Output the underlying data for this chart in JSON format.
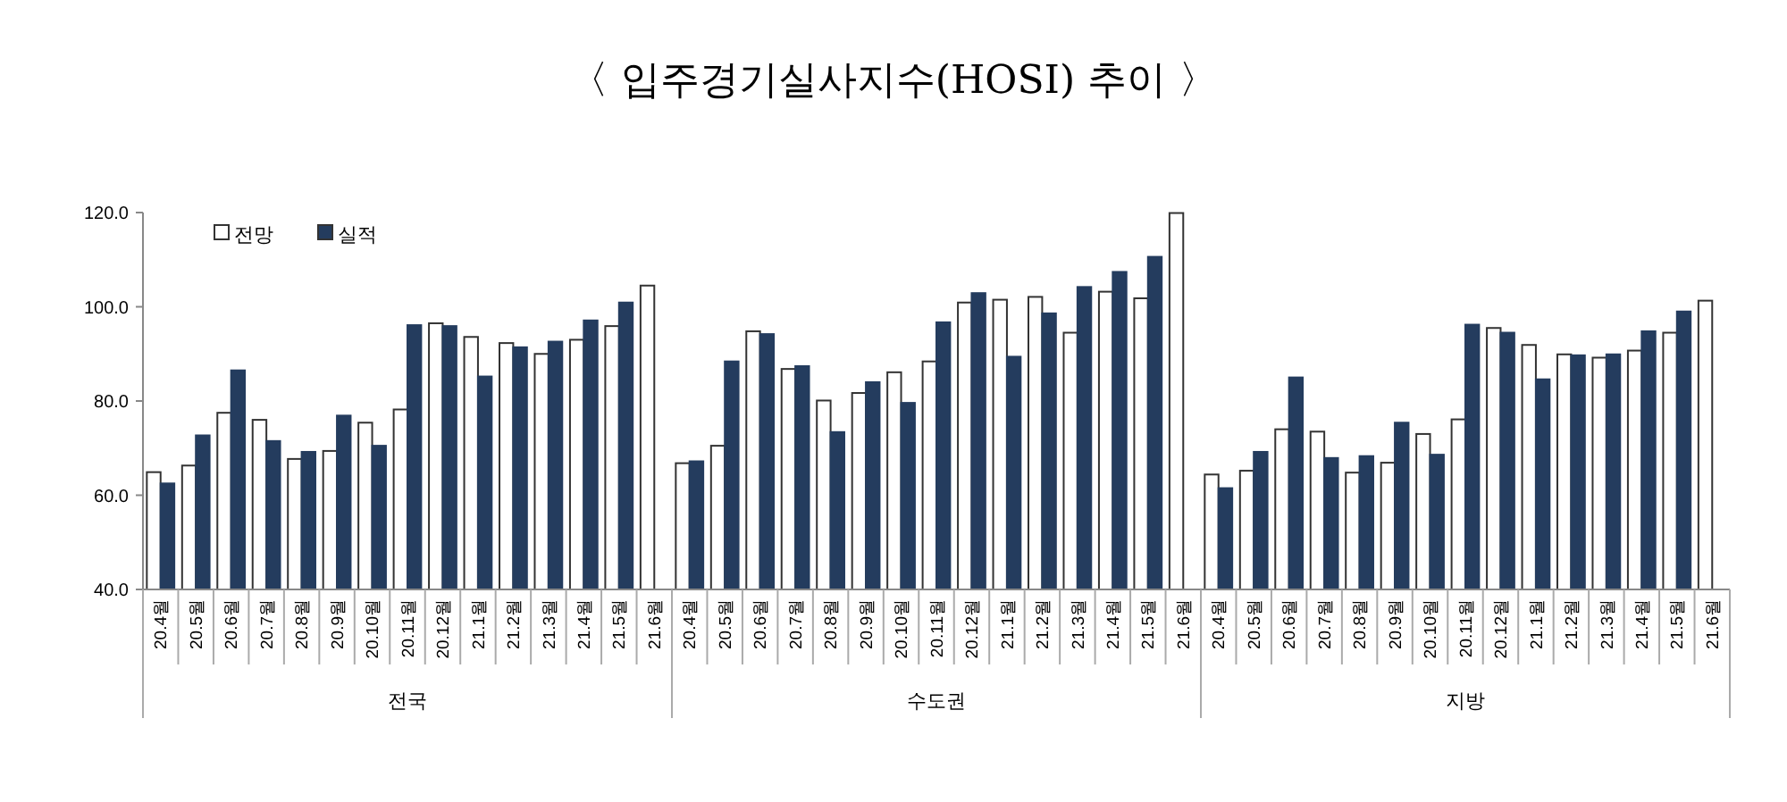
{
  "chart_data": {
    "type": "bar",
    "title": "〈 입주경기실사지수(HOSI) 추이 〉",
    "categories": [
      "20.4월",
      "20.5월",
      "20.6월",
      "20.7월",
      "20.8월",
      "20.9월",
      "20.10월",
      "20.11월",
      "20.12월",
      "21.1월",
      "21.2월",
      "21.3월",
      "21.4월",
      "21.5월",
      "21.6월",
      "20.4월",
      "20.5월",
      "20.6월",
      "20.7월",
      "20.8월",
      "20.9월",
      "20.10월",
      "20.11월",
      "20.12월",
      "21.1월",
      "21.2월",
      "21.3월",
      "21.4월",
      "21.5월",
      "21.6월",
      "20.4월",
      "20.5월",
      "20.6월",
      "20.7월",
      "20.8월",
      "20.9월",
      "20.10월",
      "20.11월",
      "20.12월",
      "21.1월",
      "21.2월",
      "21.3월",
      "21.4월",
      "21.5월",
      "21.6월"
    ],
    "series": [
      {
        "name": "전망",
        "color": "#ffffff",
        "values": [
          64.9,
          66.3,
          77.5,
          76.0,
          67.7,
          69.4,
          75.4,
          78.2,
          96.5,
          93.6,
          92.3,
          90.0,
          93.0,
          95.9,
          104.5,
          66.8,
          70.5,
          94.8,
          86.8,
          80.1,
          81.7,
          86.1,
          88.4,
          100.9,
          101.5,
          102.1,
          94.5,
          103.2,
          101.8,
          119.9,
          64.4,
          65.2,
          74.0,
          73.5,
          64.8,
          66.9,
          73.0,
          76.1,
          95.5,
          91.9,
          89.9,
          89.2,
          90.7,
          94.5,
          101.3
        ]
      },
      {
        "name": "실적",
        "color": "#243c5e",
        "values": [
          62.5,
          72.7,
          86.5,
          71.5,
          69.2,
          76.9,
          70.5,
          96.1,
          95.9,
          85.2,
          91.4,
          92.6,
          97.1,
          100.9,
          null,
          67.2,
          88.4,
          94.2,
          87.4,
          73.4,
          84.0,
          79.6,
          96.7,
          102.9,
          89.4,
          98.6,
          104.2,
          107.4,
          110.6,
          null,
          61.5,
          69.2,
          85.0,
          67.9,
          68.3,
          75.4,
          68.6,
          96.2,
          94.5,
          84.6,
          89.7,
          89.9,
          94.8,
          99.0,
          null
        ]
      }
    ],
    "ylim": [
      40,
      120
    ],
    "yticks": [
      {
        "value": 40,
        "label": "40.0"
      },
      {
        "value": 60,
        "label": "60.0"
      },
      {
        "value": 80,
        "label": "80.0"
      },
      {
        "value": 100,
        "label": "100.0"
      },
      {
        "value": 120,
        "label": "120.0"
      }
    ],
    "annotations": [
      "전국",
      "수도권",
      "지방"
    ],
    "legend": "top left",
    "grid": false
  }
}
